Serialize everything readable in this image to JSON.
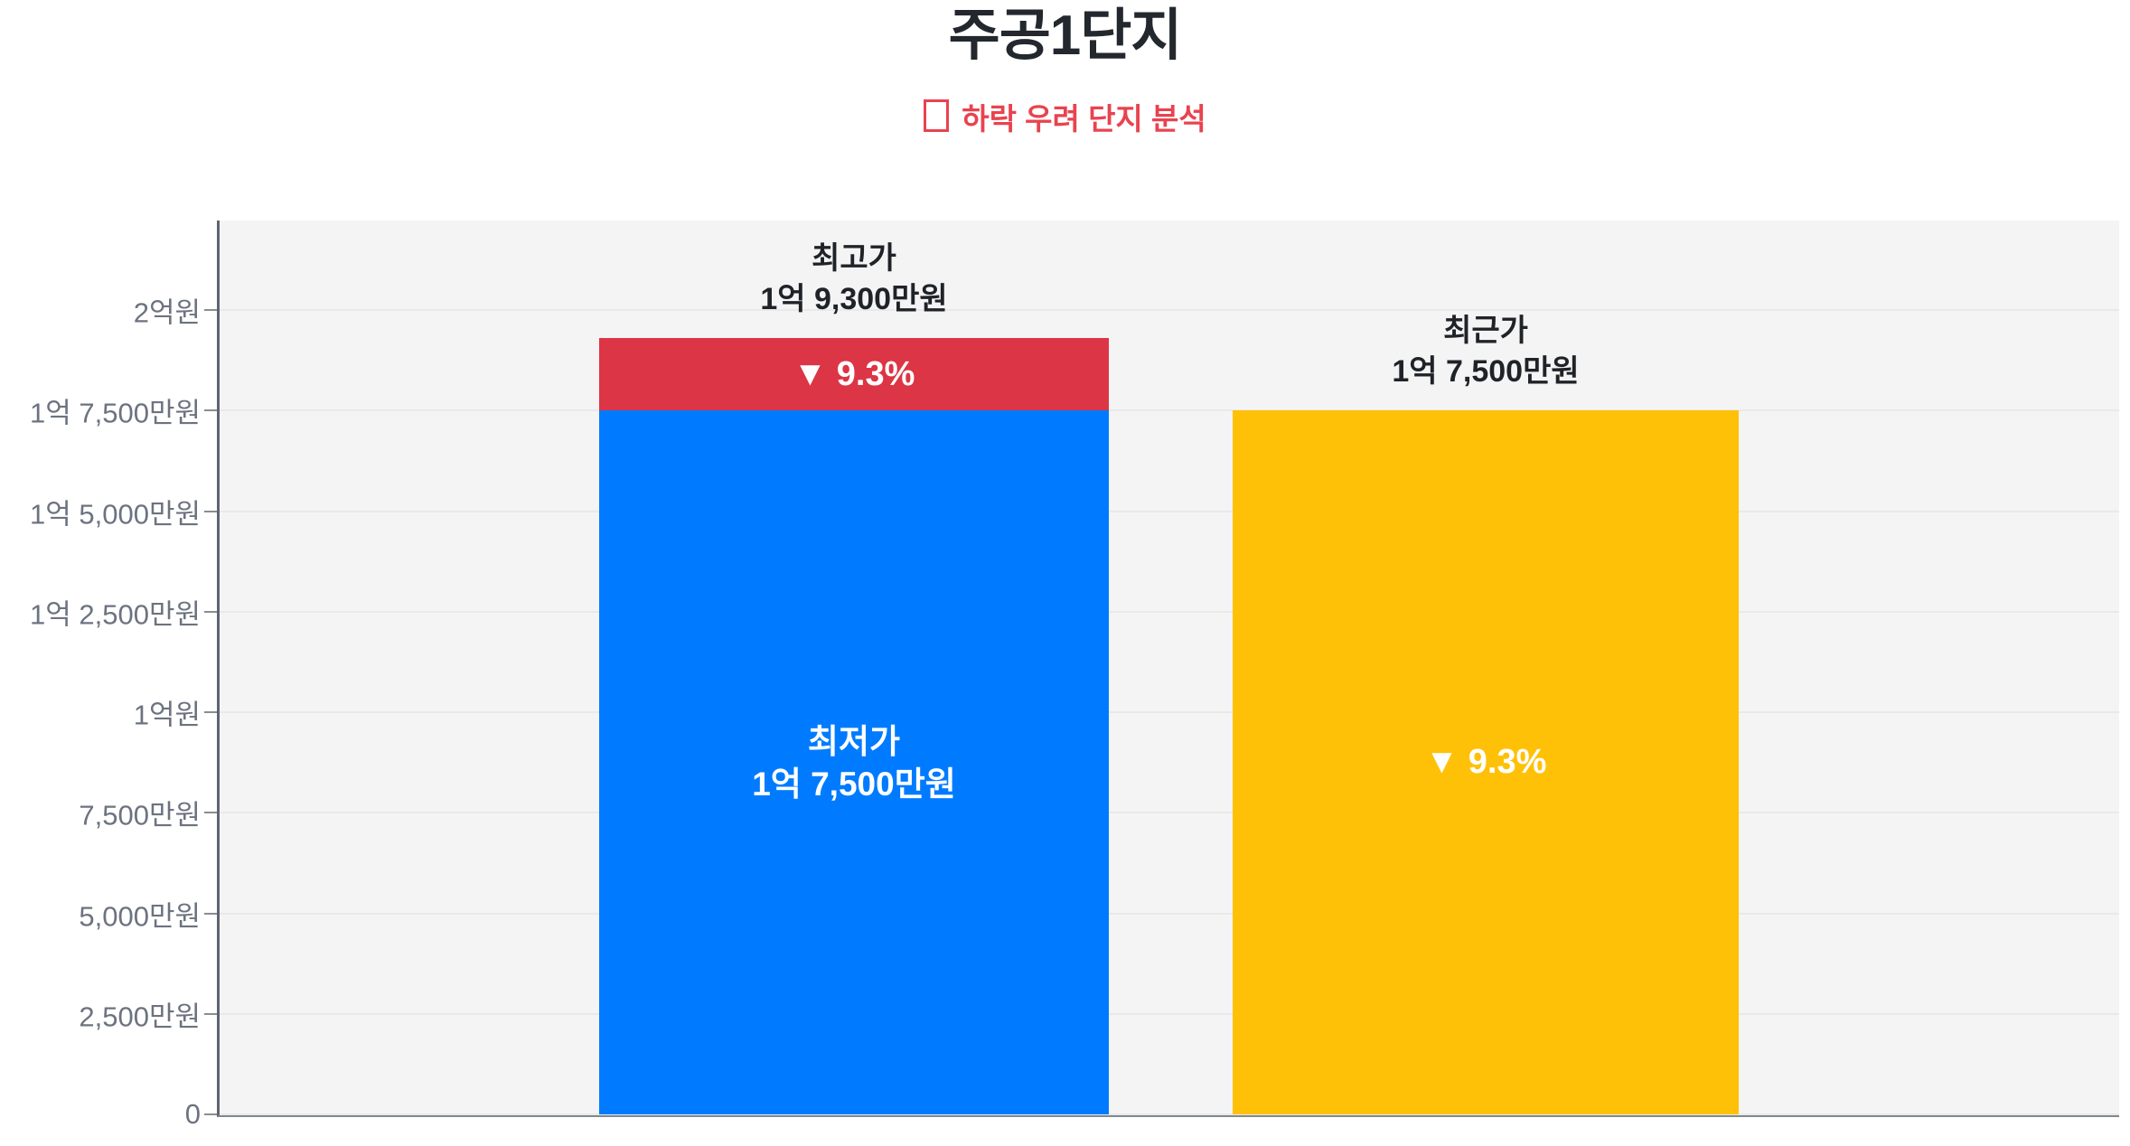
{
  "title": "주공1단지",
  "subtitle": {
    "icon": "box",
    "text": "하락 우려 단지 분석"
  },
  "colors": {
    "title": "#23272e",
    "subtitle_red": "#e8434f",
    "bar_blue": "#007bff",
    "bar_red": "#dc3545",
    "bar_yellow": "#ffc107",
    "plot_background": "#f4f4f5",
    "gridline": "#e9e9ea",
    "axis_label": "#6c7380"
  },
  "chart_data": {
    "type": "bar",
    "title": "주공1단지",
    "subtitle": "하락 우려 단지 분석",
    "unit": "원",
    "grid": "horizontal",
    "legend": "none",
    "axis": {
      "max_value": 200000000,
      "min_value": 0,
      "ticks": [
        {
          "label": "2억원",
          "value": 200000000
        },
        {
          "label": "1억 7,500만원",
          "value": 175000000
        },
        {
          "label": "1억 5,000만원",
          "value": 150000000
        },
        {
          "label": "1억 2,500만원",
          "value": 125000000
        },
        {
          "label": "1억원",
          "value": 100000000
        },
        {
          "label": "7,500만원",
          "value": 75000000
        },
        {
          "label": "5,000만원",
          "value": 50000000
        },
        {
          "label": "2,500만원",
          "value": 25000000
        },
        {
          "label": "0",
          "value": 0
        }
      ]
    },
    "bars": [
      {
        "id": "highest-price-bar",
        "top_label_line1": "최고가",
        "top_label_line2": "1억 9,300만원",
        "total_value": 193000000,
        "segments": [
          {
            "id": "lowest-price",
            "value": 175000000,
            "color_key": "bar_blue",
            "label_line1": "최저가",
            "label_line2": "1억 7,500만원"
          },
          {
            "id": "price-drop",
            "value_from": 175000000,
            "value_to": 193000000,
            "color_key": "bar_red",
            "label": "▼ 9.3%",
            "drop_percent": 9.3
          }
        ]
      },
      {
        "id": "recent-price-bar",
        "top_label_line1": "최근가",
        "top_label_line2": "1억 7,500만원",
        "total_value": 175000000,
        "segments": [
          {
            "id": "recent-price",
            "value": 175000000,
            "color_key": "bar_yellow",
            "label": "▼ 9.3%",
            "drop_percent": 9.3
          }
        ]
      }
    ]
  }
}
